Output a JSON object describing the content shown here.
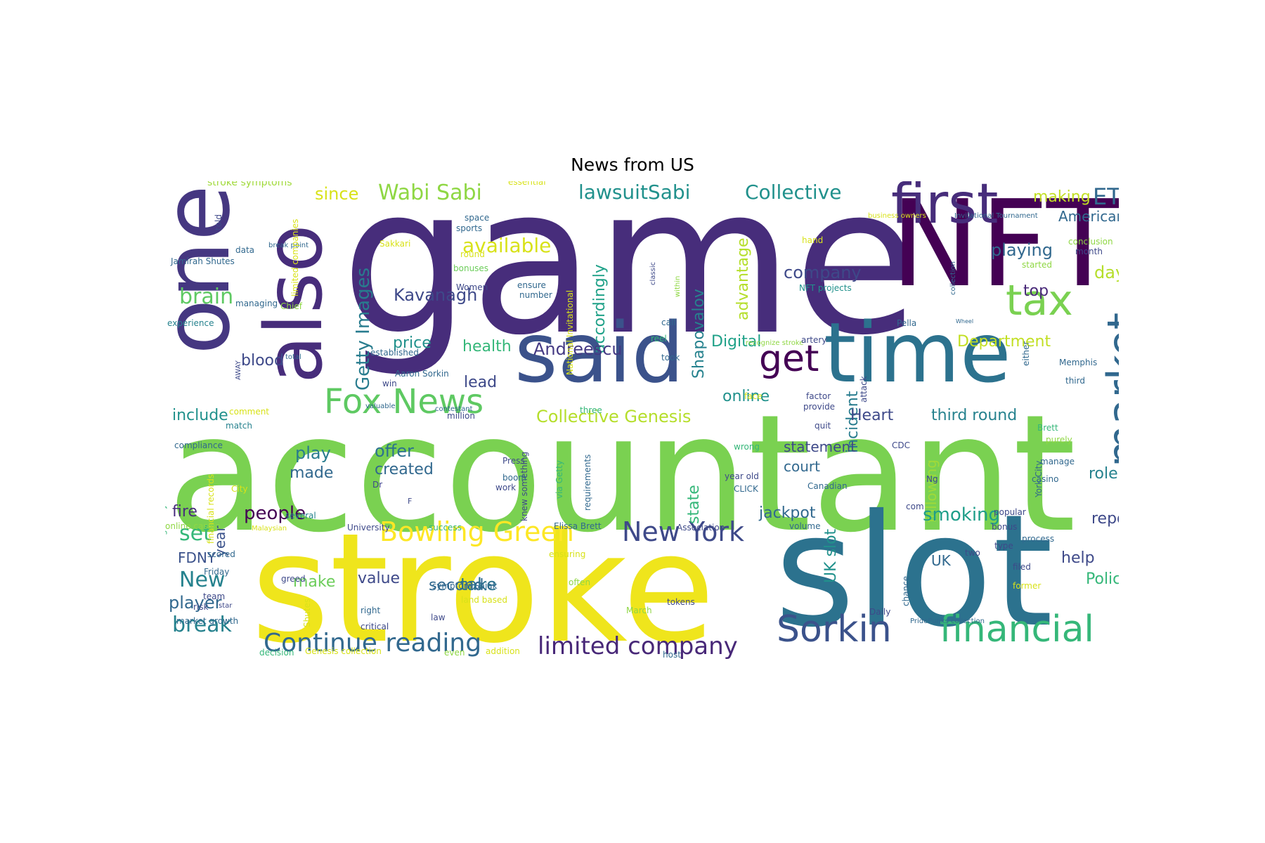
{
  "title": "News from US",
  "words": [
    {
      "text": "game",
      "color": "#472d7b"
    },
    {
      "text": "accountant",
      "color": "#7ad151"
    },
    {
      "text": "stroke",
      "color": "#efe51c"
    },
    {
      "text": "slot",
      "color": "#2c728e"
    },
    {
      "text": "NFT",
      "color": "#440154"
    },
    {
      "text": "one",
      "color": "#453781"
    },
    {
      "text": "said",
      "color": "#3b528b"
    },
    {
      "text": "time",
      "color": "#2c728e"
    },
    {
      "text": "also",
      "color": "#472d7b"
    },
    {
      "text": "first",
      "color": "#472d7b"
    },
    {
      "text": "tax",
      "color": "#7ad151"
    },
    {
      "text": "market",
      "color": "#31688e"
    },
    {
      "text": "get",
      "color": "#440154"
    },
    {
      "text": "Fox News",
      "color": "#5ec962"
    },
    {
      "text": "financial",
      "color": "#35b779"
    },
    {
      "text": "Sorkin",
      "color": "#3b528b"
    },
    {
      "text": "Bowling Green",
      "color": "#fde725"
    },
    {
      "text": "New York",
      "color": "#3e4989"
    },
    {
      "text": "Continue reading",
      "color": "#31688e"
    },
    {
      "text": "limited company",
      "color": "#482878"
    },
    {
      "text": "Wabi Sabi",
      "color": "#8fd744"
    },
    {
      "text": "lawsuitSabi",
      "color": "#21918c"
    },
    {
      "text": "Collective",
      "color": "#21918c"
    },
    {
      "text": "ETH",
      "color": "#31688e"
    },
    {
      "text": "since",
      "color": "#d8e219"
    },
    {
      "text": "making",
      "color": "#c2df23"
    },
    {
      "text": "American",
      "color": "#31688e"
    },
    {
      "text": "available",
      "color": "#d8e219"
    },
    {
      "text": "Getty Images",
      "color": "#287c8e"
    },
    {
      "text": "brain",
      "color": "#5ec962"
    },
    {
      "text": "Kavanagh",
      "color": "#3e4989"
    },
    {
      "text": "company",
      "color": "#3e4989"
    },
    {
      "text": "playing",
      "color": "#31688e"
    },
    {
      "text": "day",
      "color": "#b5de2b"
    },
    {
      "text": "top",
      "color": "#482878"
    },
    {
      "text": "accordingly",
      "color": "#1fa188"
    },
    {
      "text": "advantage",
      "color": "#b5de2b"
    },
    {
      "text": "Shapovalov",
      "color": "#26828e"
    },
    {
      "text": "Andreescu",
      "color": "#443983"
    },
    {
      "text": "price",
      "color": "#21918c"
    },
    {
      "text": "health",
      "color": "#35b779"
    },
    {
      "text": "Digital",
      "color": "#1fa188"
    },
    {
      "text": "Department",
      "color": "#c2df23"
    },
    {
      "text": "Commissioner",
      "color": "#3e4989"
    },
    {
      "text": "blood",
      "color": "#3e4989"
    },
    {
      "text": "lead",
      "color": "#3e4989"
    },
    {
      "text": "online",
      "color": "#21918c"
    },
    {
      "text": "incident",
      "color": "#287c8e"
    },
    {
      "text": "include",
      "color": "#21918c"
    },
    {
      "text": "Collective Genesis",
      "color": "#b5de2b"
    },
    {
      "text": "Heart",
      "color": "#3e4989"
    },
    {
      "text": "third round",
      "color": "#26828e"
    },
    {
      "text": "play",
      "color": "#287c8e"
    },
    {
      "text": "offer",
      "color": "#2c728e"
    },
    {
      "text": "made",
      "color": "#31688e"
    },
    {
      "text": "created",
      "color": "#31688e"
    },
    {
      "text": "statement",
      "color": "#3e4989"
    },
    {
      "text": "court",
      "color": "#31688e"
    },
    {
      "text": "following",
      "color": "#a0da39"
    },
    {
      "text": "state",
      "color": "#35b779"
    },
    {
      "text": "role",
      "color": "#26828e"
    },
    {
      "text": "fire",
      "color": "#472d7b"
    },
    {
      "text": "people",
      "color": "#440154"
    },
    {
      "text": "jackpot",
      "color": "#31688e"
    },
    {
      "text": "smoking",
      "color": "#1f9e89"
    },
    {
      "text": "report",
      "color": "#3e4989"
    },
    {
      "text": "set",
      "color": "#35b779"
    },
    {
      "text": "year",
      "color": "#3b528b"
    },
    {
      "text": "UK slot",
      "color": "#21918c"
    },
    {
      "text": "FDNY",
      "color": "#3b528b"
    },
    {
      "text": "UK",
      "color": "#31688e"
    },
    {
      "text": "help",
      "color": "#3e4989"
    },
    {
      "text": "New",
      "color": "#26828e"
    },
    {
      "text": "make",
      "color": "#6ccd5a"
    },
    {
      "text": "value",
      "color": "#3e4989"
    },
    {
      "text": "second",
      "color": "#31688e"
    },
    {
      "text": "take",
      "color": "#2c728e"
    },
    {
      "text": "Police",
      "color": "#35b779"
    },
    {
      "text": "player",
      "color": "#31688e"
    },
    {
      "text": "break",
      "color": "#26828e"
    },
    {
      "text": "stroke symptoms",
      "color": "#a0da39"
    },
    {
      "text": "essential",
      "color": "#d8e219"
    },
    {
      "text": "space",
      "color": "#31688e"
    },
    {
      "text": "sports",
      "color": "#31688e"
    },
    {
      "text": "Sakkari",
      "color": "#d8e219"
    },
    {
      "text": "round",
      "color": "#d8e219"
    },
    {
      "text": "bonuses",
      "color": "#6ccd5a"
    },
    {
      "text": "Women",
      "color": "#3e4989"
    },
    {
      "text": "ensure",
      "color": "#31688e"
    },
    {
      "text": "number",
      "color": "#31688e"
    },
    {
      "text": "business owners",
      "color": "#d8e219"
    },
    {
      "text": "Invitational Tournament",
      "color": "#31688e"
    },
    {
      "text": "hand",
      "color": "#d8e219"
    },
    {
      "text": "conclusion",
      "color": "#8fd744"
    },
    {
      "text": "month",
      "color": "#3e4989"
    },
    {
      "text": "started",
      "color": "#8fd744"
    },
    {
      "text": "NFT projects",
      "color": "#21918c"
    },
    {
      "text": "told",
      "color": "#3e4989"
    },
    {
      "text": "break point",
      "color": "#31688e"
    },
    {
      "text": "data",
      "color": "#31688e"
    },
    {
      "text": "Jamirah Shutes",
      "color": "#31688e"
    },
    {
      "text": "limited companies",
      "color": "#d8e219"
    },
    {
      "text": "Chief",
      "color": "#8fd744"
    },
    {
      "text": "managing",
      "color": "#31688e"
    },
    {
      "text": "experience",
      "color": "#26828e"
    },
    {
      "text": "classic",
      "color": "#3e4989"
    },
    {
      "text": "National Invitational",
      "color": "#d8e219"
    },
    {
      "text": "within",
      "color": "#8fd744"
    },
    {
      "text": "collection",
      "color": "#31688e"
    },
    {
      "text": "Wheel",
      "color": "#31688e"
    },
    {
      "text": "call",
      "color": "#31688e"
    },
    {
      "text": "reel",
      "color": "#35b779"
    },
    {
      "text": "recognize stroke",
      "color": "#8fd744"
    },
    {
      "text": "artery",
      "color": "#3e4989"
    },
    {
      "text": "Pella",
      "color": "#31688e"
    },
    {
      "text": "either",
      "color": "#31688e"
    },
    {
      "text": "established",
      "color": "#31688e"
    },
    {
      "text": "total",
      "color": "#31688e"
    },
    {
      "text": "AWAY",
      "color": "#3e4989"
    },
    {
      "text": "took",
      "color": "#31688e"
    },
    {
      "text": "Memphis",
      "color": "#31688e"
    },
    {
      "text": "win",
      "color": "#3e4989"
    },
    {
      "text": "Aaron Sorkin",
      "color": "#31688e"
    },
    {
      "text": "attack",
      "color": "#3e4989"
    },
    {
      "text": "third",
      "color": "#31688e"
    },
    {
      "text": "factor",
      "color": "#3e4989"
    },
    {
      "text": "provide",
      "color": "#3e4989"
    },
    {
      "text": "face",
      "color": "#d8e219"
    },
    {
      "text": "comment",
      "color": "#d8e219"
    },
    {
      "text": "valuable",
      "color": "#31688e"
    },
    {
      "text": "contestant",
      "color": "#31688e"
    },
    {
      "text": "million",
      "color": "#3e4989"
    },
    {
      "text": "three",
      "color": "#35b779"
    },
    {
      "text": "quit",
      "color": "#3e4989"
    },
    {
      "text": "Brett",
      "color": "#35b779"
    },
    {
      "text": "purely",
      "color": "#8fd744"
    },
    {
      "text": "match",
      "color": "#26828e"
    },
    {
      "text": "compliance",
      "color": "#31688e"
    },
    {
      "text": "knew something",
      "color": "#3e4989"
    },
    {
      "text": "via Getty",
      "color": "#35b779"
    },
    {
      "text": "requirements",
      "color": "#31688e"
    },
    {
      "text": "wrong",
      "color": "#35b779"
    },
    {
      "text": "CDC",
      "color": "#3e4989"
    },
    {
      "text": "York City",
      "color": "#31688e"
    },
    {
      "text": "manage",
      "color": "#31688e"
    },
    {
      "text": "casino",
      "color": "#31688e"
    },
    {
      "text": "guard Jamirah",
      "color": "#35b779"
    },
    {
      "text": "financial records",
      "color": "#d8e219"
    },
    {
      "text": "Press",
      "color": "#3e4989"
    },
    {
      "text": "boom",
      "color": "#31688e"
    },
    {
      "text": "work",
      "color": "#3e4989"
    },
    {
      "text": "Dr",
      "color": "#3e4989"
    },
    {
      "text": "year old",
      "color": "#3e4989"
    },
    {
      "text": "CLICK",
      "color": "#31688e"
    },
    {
      "text": "Canadian",
      "color": "#31688e"
    },
    {
      "text": "Ng",
      "color": "#3e4989"
    },
    {
      "text": "City",
      "color": "#d8e219"
    },
    {
      "text": "popular",
      "color": "#3e4989"
    },
    {
      "text": "com",
      "color": "#3e4989"
    },
    {
      "text": "several",
      "color": "#26828e"
    },
    {
      "text": "online casino",
      "color": "#8fd744"
    },
    {
      "text": "Malaysian",
      "color": "#d8e219"
    },
    {
      "text": "University",
      "color": "#3e4989"
    },
    {
      "text": "success",
      "color": "#35b779"
    },
    {
      "text": "Elissa Brett",
      "color": "#31688e"
    },
    {
      "text": "Association",
      "color": "#3e4989"
    },
    {
      "text": "volume",
      "color": "#31688e"
    },
    {
      "text": "bonus",
      "color": "#3e4989"
    },
    {
      "text": "process",
      "color": "#31688e"
    },
    {
      "text": "type",
      "color": "#3e4989"
    },
    {
      "text": "two",
      "color": "#3e4989"
    },
    {
      "text": "scored",
      "color": "#31688e"
    },
    {
      "text": "ensuring",
      "color": "#d8e219"
    },
    {
      "text": "filed",
      "color": "#3e4989"
    },
    {
      "text": "Friday",
      "color": "#31688e"
    },
    {
      "text": "greed",
      "color": "#3e4989"
    },
    {
      "text": "symptom",
      "color": "#31688e"
    },
    {
      "text": "Sajak",
      "color": "#31688e"
    },
    {
      "text": "often",
      "color": "#8fd744"
    },
    {
      "text": "chance",
      "color": "#31688e"
    },
    {
      "text": "former",
      "color": "#d8e219"
    },
    {
      "text": "team",
      "color": "#3e4989"
    },
    {
      "text": "land based",
      "color": "#d8e219"
    },
    {
      "text": "tokens",
      "color": "#3e4989"
    },
    {
      "text": "star",
      "color": "#3e4989"
    },
    {
      "text": "Shutes",
      "color": "#d8e219"
    },
    {
      "text": "right",
      "color": "#31688e"
    },
    {
      "text": "March",
      "color": "#8fd744"
    },
    {
      "text": "Daily",
      "color": "#3e4989"
    },
    {
      "text": "risk",
      "color": "#3e4989"
    },
    {
      "text": "law",
      "color": "#3e4989"
    },
    {
      "text": "market growth",
      "color": "#31688e"
    },
    {
      "text": "critical",
      "color": "#3e4989"
    },
    {
      "text": "PridePunks collection",
      "color": "#31688e"
    },
    {
      "text": "decision",
      "color": "#35b779"
    },
    {
      "text": "Genesis collection",
      "color": "#d8e219"
    },
    {
      "text": "even",
      "color": "#8fd744"
    },
    {
      "text": "addition",
      "color": "#d8e219"
    },
    {
      "text": "host",
      "color": "#31688e"
    },
    {
      "text": "F",
      "color": "#3e4989"
    }
  ]
}
